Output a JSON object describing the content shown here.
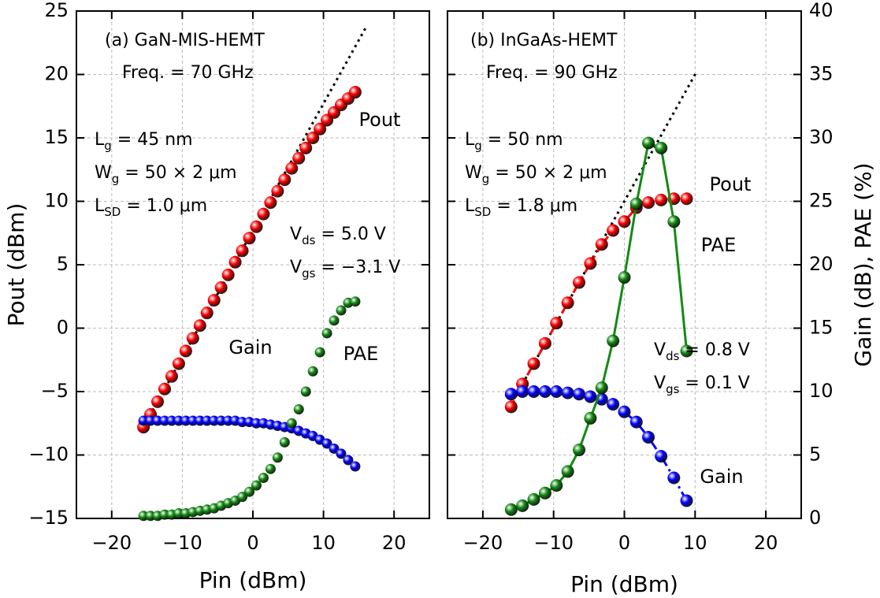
{
  "chart_data": [
    {
      "type": "scatter",
      "xlabel": "Pin (dBm)",
      "ylabel": "Pout (dBm)",
      "grid": true,
      "xlim": [
        -25,
        25
      ],
      "xticks": [
        {
          "value": -20,
          "label": "−20"
        },
        {
          "value": -10,
          "label": "−10"
        },
        0,
        10,
        20
      ],
      "ylim": [
        -15,
        25
      ],
      "yticks": [
        {
          "value": -15,
          "label": "−15"
        },
        {
          "value": -10,
          "label": "−10"
        },
        {
          "value": -5,
          "label": "−5"
        },
        0,
        5,
        10,
        15,
        20,
        25
      ],
      "y2lim": [
        0,
        40
      ],
      "annotations": [
        [
          "(a) GaN-MIS-HEMT"
        ],
        [
          "Freq. = 70 GHz"
        ],
        [
          "L",
          "g",
          " = 45 nm"
        ],
        [
          "W",
          "g",
          " = 50 × 2 μm"
        ],
        [
          "L",
          "SD",
          " = 1.0 μm"
        ],
        [
          "V",
          "ds",
          " = 5.0 V"
        ],
        [
          "V",
          "gs",
          " = −3.1 V"
        ]
      ],
      "trend_line": {
        "x": [
          -15.5,
          16
        ],
        "values": [
          -7.8,
          23.7
        ]
      },
      "series": [
        {
          "name": "Pout",
          "color": "#ff0000",
          "axis": "y",
          "x": [
            -15.5,
            -14.5,
            -13.5,
            -12.5,
            -11.5,
            -10.5,
            -9.5,
            -8.5,
            -7.5,
            -6.5,
            -5.5,
            -4.5,
            -3.5,
            -2.5,
            -1.5,
            -0.5,
            0.5,
            1.5,
            2.5,
            3.5,
            4.5,
            5.5,
            6.5,
            7.5,
            8.5,
            9.5,
            10.5,
            11.5,
            12.5,
            13.5,
            14.5
          ],
          "values": [
            -7.8,
            -6.8,
            -5.8,
            -4.8,
            -3.8,
            -2.8,
            -1.8,
            -0.8,
            0.2,
            1.2,
            2.2,
            3.2,
            4.2,
            5.2,
            6.1,
            7.1,
            8.0,
            9.0,
            9.9,
            10.8,
            11.7,
            12.6,
            13.4,
            14.2,
            15.0,
            15.7,
            16.4,
            17.0,
            17.6,
            18.1,
            18.6
          ]
        },
        {
          "name": "Gain",
          "color": "#0000ff",
          "axis": "y2",
          "x": [
            -15.5,
            -14.5,
            -13.5,
            -12.5,
            -11.5,
            -10.5,
            -9.5,
            -8.5,
            -7.5,
            -6.5,
            -5.5,
            -4.5,
            -3.5,
            -2.5,
            -1.5,
            -0.5,
            0.5,
            1.5,
            2.5,
            3.5,
            4.5,
            5.5,
            6.5,
            7.5,
            8.5,
            9.5,
            10.5,
            11.5,
            12.5,
            13.5,
            14.5
          ],
          "values": [
            7.7,
            7.7,
            7.7,
            7.7,
            7.7,
            7.7,
            7.7,
            7.7,
            7.7,
            7.7,
            7.7,
            7.7,
            7.7,
            7.7,
            7.6,
            7.6,
            7.5,
            7.5,
            7.4,
            7.3,
            7.2,
            7.1,
            6.9,
            6.7,
            6.5,
            6.2,
            5.9,
            5.5,
            5.1,
            4.6,
            4.1
          ]
        },
        {
          "name": "PAE",
          "color": "#138a13",
          "axis": "y2",
          "x": [
            -15.5,
            -14.5,
            -13.5,
            -12.5,
            -11.5,
            -10.5,
            -9.5,
            -8.5,
            -7.5,
            -6.5,
            -5.5,
            -4.5,
            -3.5,
            -2.5,
            -1.5,
            -0.5,
            0.5,
            1.5,
            2.5,
            3.5,
            4.5,
            5.5,
            6.5,
            7.5,
            8.5,
            9.5,
            10.5,
            11.5,
            12.5,
            13.5,
            14.5
          ],
          "values": [
            0.2,
            0.2,
            0.2,
            0.3,
            0.3,
            0.4,
            0.4,
            0.5,
            0.6,
            0.7,
            0.8,
            1.0,
            1.2,
            1.4,
            1.7,
            2.1,
            2.6,
            3.2,
            3.9,
            4.8,
            6.0,
            7.5,
            8.6,
            10.0,
            11.6,
            13.1,
            14.6,
            15.6,
            16.4,
            17.0,
            17.1
          ]
        }
      ]
    },
    {
      "type": "scatter",
      "xlabel": "Pin (dBm)",
      "y2label": "Gain (dB), PAE (%)",
      "grid": true,
      "xlim": [
        -25,
        25
      ],
      "xticks": [
        {
          "value": -20,
          "label": "−20"
        },
        {
          "value": -10,
          "label": "−10"
        },
        0,
        10,
        20
      ],
      "ylim": [
        -15,
        25
      ],
      "y2lim": [
        0,
        40
      ],
      "y2ticks": [
        0,
        5,
        10,
        15,
        20,
        25,
        30,
        35,
        40
      ],
      "annotations": [
        [
          "(b) InGaAs-HEMT"
        ],
        [
          "Freq. = 90 GHz"
        ],
        [
          "L",
          "g",
          " = 50 nm"
        ],
        [
          "W",
          "g",
          " = 50 × 2 μm"
        ],
        [
          "L",
          "SD",
          " = 1.8 μm"
        ],
        [
          "V",
          "ds",
          " = 0.8 V"
        ],
        [
          "V",
          "gs",
          " = 0.1 V"
        ]
      ],
      "trend_line": {
        "x": [
          -14,
          10.2
        ],
        "values": [
          -4,
          20.2
        ]
      },
      "series": [
        {
          "name": "Pout",
          "color": "#ff0000",
          "axis": "y",
          "line": "dash",
          "x": [
            -16,
            -14.4,
            -12.8,
            -11.2,
            -9.6,
            -8,
            -6.4,
            -4.8,
            -3.2,
            -1.6,
            0,
            1.7,
            3.4,
            5.2,
            7,
            8.8
          ],
          "values": [
            -6.2,
            -4.4,
            -2.8,
            -1.2,
            0.4,
            2.0,
            3.6,
            5.1,
            6.6,
            7.7,
            8.4,
            9.5,
            9.9,
            10.1,
            10.2,
            10.2
          ]
        },
        {
          "name": "Gain",
          "color": "#0000ff",
          "axis": "y2",
          "line": "dashdot",
          "x": [
            -16,
            -14.4,
            -12.8,
            -11.2,
            -9.6,
            -8,
            -6.4,
            -4.8,
            -3.2,
            -1.6,
            0,
            1.7,
            3.4,
            5.2,
            7,
            8.8
          ],
          "values": [
            9.8,
            10.0,
            10.0,
            10.0,
            10.0,
            9.9,
            9.8,
            9.6,
            9.4,
            9.0,
            8.4,
            7.6,
            6.4,
            4.9,
            3.2,
            1.4
          ]
        },
        {
          "name": "PAE",
          "color": "#138a13",
          "axis": "y2",
          "line": "solid",
          "x": [
            -16,
            -14.4,
            -12.8,
            -11.2,
            -9.6,
            -8,
            -6.4,
            -4.8,
            -3.2,
            -1.6,
            0,
            1.7,
            3.4,
            5.2,
            7,
            8.8
          ],
          "values": [
            0.7,
            1.0,
            1.5,
            2.0,
            2.6,
            3.7,
            5.4,
            7.9,
            10.3,
            14.0,
            19.0,
            24.8,
            29.6,
            29.2,
            23.4,
            13.2
          ]
        }
      ]
    }
  ]
}
